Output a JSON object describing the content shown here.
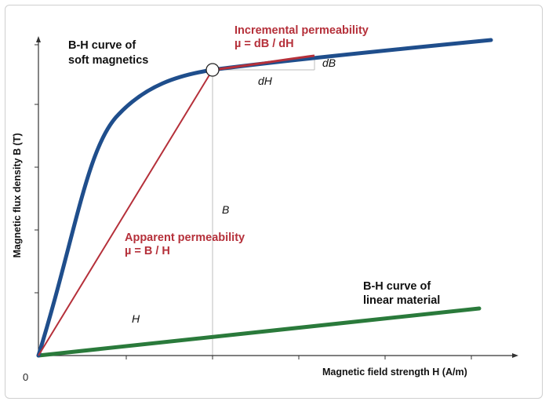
{
  "colors": {
    "soft_curve": "#1f4e8c",
    "linear_curve": "#2a7a3b",
    "permeability": "#b5303a",
    "axis": "#333333",
    "guide": "#bdbdbd"
  },
  "labels": {
    "origin": "0",
    "y_axis": "Magnetic flux density B (T)",
    "x_axis": "Magnetic field strength H (A/m)",
    "soft_curve_line1": "B-H curve of",
    "soft_curve_line2": "soft magnetics",
    "incremental_line1": "Incremental permeability",
    "incremental_line2": "µ = dB / dH",
    "dB": "dB",
    "dH": "dH",
    "B": "B",
    "H": "H",
    "apparent_line1": "Apparent permeability",
    "apparent_line2": "µ = B / H",
    "linear_line1": "B-H curve of",
    "linear_line2": "linear material"
  }
}
